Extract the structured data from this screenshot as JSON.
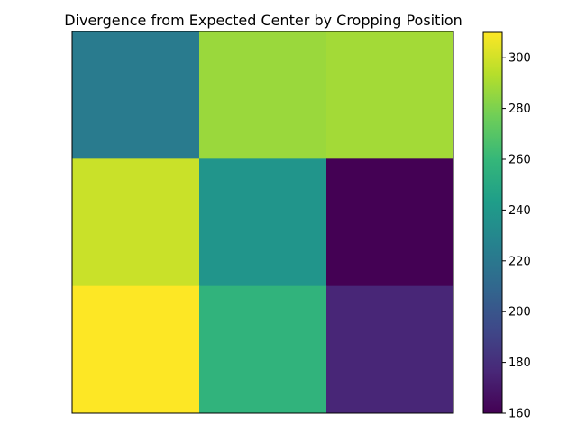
{
  "chart_data": {
    "type": "heatmap",
    "title": "Divergence from Expected Center by Cropping Position",
    "rows": 3,
    "cols": 3,
    "values": [
      [
        222,
        287,
        289
      ],
      [
        298,
        238,
        160
      ],
      [
        310,
        257,
        176
      ]
    ],
    "colorbar": {
      "vmin": 160,
      "vmax": 310,
      "ticks": [
        160,
        180,
        200,
        220,
        240,
        260,
        280,
        300
      ],
      "colormap": "viridis"
    },
    "xlabel": "",
    "ylabel": "",
    "grid": false
  },
  "colors": {
    "viridis": [
      "#440154",
      "#482878",
      "#3e4989",
      "#31688e",
      "#26828e",
      "#1f9e89",
      "#35b779",
      "#6ece58",
      "#b5de2b",
      "#fde725"
    ],
    "frame": "#000000",
    "background": "#ffffff"
  }
}
